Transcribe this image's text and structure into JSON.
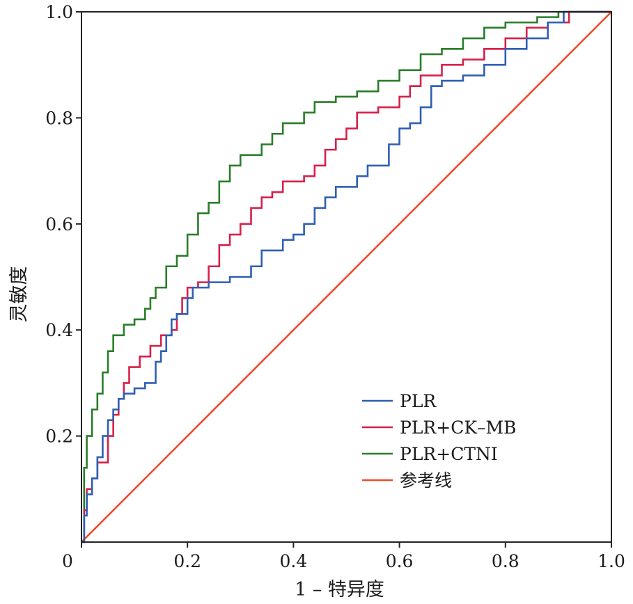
{
  "chart_data": {
    "type": "line",
    "title": "",
    "xlabel": "1 – 特异度",
    "ylabel": "灵敏度",
    "xlim": [
      0,
      1
    ],
    "ylim": [
      0,
      1
    ],
    "xticks": [
      {
        "v": 0,
        "label": "0"
      },
      {
        "v": 0.2,
        "label": "0.2"
      },
      {
        "v": 0.4,
        "label": "0.4"
      },
      {
        "v": 0.6,
        "label": "0.6"
      },
      {
        "v": 0.8,
        "label": "0.8"
      },
      {
        "v": 1.0,
        "label": "1.0"
      }
    ],
    "yticks": [
      {
        "v": 0.2,
        "label": "0.2"
      },
      {
        "v": 0.4,
        "label": "0.4"
      },
      {
        "v": 0.6,
        "label": "0.6"
      },
      {
        "v": 0.8,
        "label": "0.8"
      },
      {
        "v": 1.0,
        "label": "1.0"
      }
    ],
    "grid": false,
    "legend_position": "bottom-right",
    "series": [
      {
        "name": "PLR",
        "color": "#2f5fb3",
        "points": [
          [
            0,
            0
          ],
          [
            0.005,
            0.05
          ],
          [
            0.01,
            0.09
          ],
          [
            0.02,
            0.12
          ],
          [
            0.03,
            0.16
          ],
          [
            0.04,
            0.2
          ],
          [
            0.05,
            0.23
          ],
          [
            0.06,
            0.25
          ],
          [
            0.07,
            0.27
          ],
          [
            0.08,
            0.28
          ],
          [
            0.1,
            0.29
          ],
          [
            0.12,
            0.3
          ],
          [
            0.14,
            0.34
          ],
          [
            0.15,
            0.36
          ],
          [
            0.16,
            0.39
          ],
          [
            0.17,
            0.42
          ],
          [
            0.18,
            0.43
          ],
          [
            0.2,
            0.46
          ],
          [
            0.21,
            0.48
          ],
          [
            0.24,
            0.49
          ],
          [
            0.28,
            0.5
          ],
          [
            0.32,
            0.52
          ],
          [
            0.34,
            0.55
          ],
          [
            0.38,
            0.57
          ],
          [
            0.4,
            0.58
          ],
          [
            0.42,
            0.6
          ],
          [
            0.44,
            0.63
          ],
          [
            0.46,
            0.65
          ],
          [
            0.48,
            0.67
          ],
          [
            0.52,
            0.69
          ],
          [
            0.54,
            0.71
          ],
          [
            0.58,
            0.75
          ],
          [
            0.6,
            0.78
          ],
          [
            0.62,
            0.79
          ],
          [
            0.64,
            0.82
          ],
          [
            0.66,
            0.86
          ],
          [
            0.68,
            0.87
          ],
          [
            0.72,
            0.88
          ],
          [
            0.76,
            0.9
          ],
          [
            0.8,
            0.93
          ],
          [
            0.84,
            0.95
          ],
          [
            0.88,
            0.98
          ],
          [
            0.91,
            1.0
          ],
          [
            1,
            1
          ]
        ]
      },
      {
        "name": "PLR+CK–MB",
        "color": "#d6204a",
        "points": [
          [
            0,
            0
          ],
          [
            0.005,
            0.06
          ],
          [
            0.01,
            0.1
          ],
          [
            0.02,
            0.12
          ],
          [
            0.03,
            0.15
          ],
          [
            0.05,
            0.2
          ],
          [
            0.06,
            0.24
          ],
          [
            0.07,
            0.27
          ],
          [
            0.08,
            0.3
          ],
          [
            0.09,
            0.33
          ],
          [
            0.11,
            0.35
          ],
          [
            0.13,
            0.37
          ],
          [
            0.15,
            0.39
          ],
          [
            0.17,
            0.4
          ],
          [
            0.18,
            0.43
          ],
          [
            0.19,
            0.46
          ],
          [
            0.2,
            0.48
          ],
          [
            0.22,
            0.49
          ],
          [
            0.24,
            0.52
          ],
          [
            0.26,
            0.56
          ],
          [
            0.28,
            0.58
          ],
          [
            0.3,
            0.6
          ],
          [
            0.32,
            0.63
          ],
          [
            0.34,
            0.65
          ],
          [
            0.36,
            0.66
          ],
          [
            0.38,
            0.68
          ],
          [
            0.42,
            0.69
          ],
          [
            0.44,
            0.71
          ],
          [
            0.46,
            0.74
          ],
          [
            0.48,
            0.76
          ],
          [
            0.5,
            0.78
          ],
          [
            0.52,
            0.81
          ],
          [
            0.56,
            0.82
          ],
          [
            0.6,
            0.84
          ],
          [
            0.62,
            0.86
          ],
          [
            0.64,
            0.88
          ],
          [
            0.68,
            0.9
          ],
          [
            0.72,
            0.91
          ],
          [
            0.76,
            0.93
          ],
          [
            0.8,
            0.95
          ],
          [
            0.84,
            0.97
          ],
          [
            0.88,
            0.98
          ],
          [
            0.92,
            1.0
          ],
          [
            1,
            1
          ]
        ]
      },
      {
        "name": "PLR+CTNI",
        "color": "#2a7d2a",
        "points": [
          [
            0,
            0
          ],
          [
            0.005,
            0.14
          ],
          [
            0.01,
            0.2
          ],
          [
            0.02,
            0.25
          ],
          [
            0.03,
            0.28
          ],
          [
            0.04,
            0.32
          ],
          [
            0.05,
            0.36
          ],
          [
            0.06,
            0.39
          ],
          [
            0.08,
            0.41
          ],
          [
            0.1,
            0.42
          ],
          [
            0.12,
            0.44
          ],
          [
            0.13,
            0.46
          ],
          [
            0.14,
            0.48
          ],
          [
            0.16,
            0.52
          ],
          [
            0.18,
            0.54
          ],
          [
            0.2,
            0.58
          ],
          [
            0.22,
            0.62
          ],
          [
            0.24,
            0.64
          ],
          [
            0.26,
            0.68
          ],
          [
            0.28,
            0.71
          ],
          [
            0.3,
            0.73
          ],
          [
            0.34,
            0.75
          ],
          [
            0.36,
            0.77
          ],
          [
            0.38,
            0.79
          ],
          [
            0.42,
            0.81
          ],
          [
            0.44,
            0.83
          ],
          [
            0.48,
            0.84
          ],
          [
            0.52,
            0.85
          ],
          [
            0.56,
            0.87
          ],
          [
            0.6,
            0.89
          ],
          [
            0.64,
            0.92
          ],
          [
            0.68,
            0.93
          ],
          [
            0.72,
            0.95
          ],
          [
            0.76,
            0.97
          ],
          [
            0.8,
            0.98
          ],
          [
            0.86,
            0.99
          ],
          [
            0.9,
            1.0
          ],
          [
            1,
            1
          ]
        ]
      },
      {
        "name": "参考线",
        "color": "#ef4b2a",
        "points": [
          [
            0,
            0
          ],
          [
            1,
            1
          ]
        ]
      }
    ]
  }
}
